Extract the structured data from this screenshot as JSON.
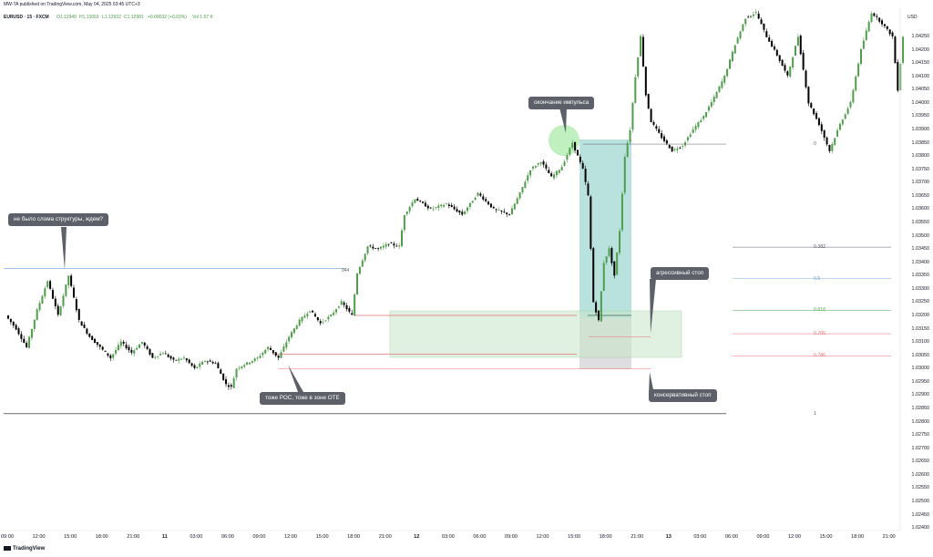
{
  "header": {
    "author_line": "MW-TA published on TradingView.com, May 04, 2025 03:45 UTC+3",
    "symbol": "EURUSD · 15 · FXCM",
    "ohlc": {
      "o": "O1.12949",
      "h": "H1.13001",
      "l": "L1.12932",
      "c": "C1.12981",
      "chg": "+0.00032 (+0.03%)",
      "vol": "Vol 1.67 K"
    },
    "currency": "USD"
  },
  "footer": {
    "logo": "TradingView"
  },
  "annotations": {
    "structure": "не было слома структуры, ждем?",
    "poc": "тоже POC, тоже в зоне OTE",
    "impulse_end": "окончание импульса",
    "aggressive_stop": "агрессивный стоп",
    "conservative_stop": "консервативный стоп",
    "level_label": "944"
  },
  "colors": {
    "up": "#4f9d4a",
    "down": "#000000",
    "fib_382": "#5d6069",
    "fib_05": "#6fa8dc",
    "fib_0618": "#4caf50",
    "fib_0705": "#e57373",
    "fib_0786": "#e57373",
    "target_zone": "#80cbc4",
    "ote_zone": "#c8e6c9"
  },
  "chart_data": {
    "type": "candlestick",
    "symbol": "EURUSD",
    "timeframe": "15",
    "ylim": [
      1.0239,
      1.0436
    ],
    "y_ticks": [
      "1.04250",
      "1.04200",
      "1.04150",
      "1.04100",
      "1.04050",
      "1.04000",
      "1.03950",
      "1.03900",
      "1.03850",
      "1.03800",
      "1.03750",
      "1.03700",
      "1.03650",
      "1.03600",
      "1.03550",
      "1.03500",
      "1.03450",
      "1.03400",
      "1.03350",
      "1.03300",
      "1.03250",
      "1.03200",
      "1.03150",
      "1.03100",
      "1.03050",
      "1.03000",
      "1.02950",
      "1.02900",
      "1.02850",
      "1.02800",
      "1.02750",
      "1.02700",
      "1.02650",
      "1.02600",
      "1.02550",
      "1.02500",
      "1.02450",
      "1.02400"
    ],
    "x_ticks": [
      {
        "t": 0,
        "label": "09:00"
      },
      {
        "t": 12,
        "label": "12:00"
      },
      {
        "t": 24,
        "label": "15:00"
      },
      {
        "t": 36,
        "label": "18:00"
      },
      {
        "t": 48,
        "label": "21:00"
      },
      {
        "t": 60,
        "label": "11",
        "bold": true
      },
      {
        "t": 72,
        "label": "03:00"
      },
      {
        "t": 84,
        "label": "06:00"
      },
      {
        "t": 96,
        "label": "09:00"
      },
      {
        "t": 108,
        "label": "12:00"
      },
      {
        "t": 120,
        "label": "15:00"
      },
      {
        "t": 132,
        "label": "18:00"
      },
      {
        "t": 144,
        "label": "21:00"
      },
      {
        "t": 156,
        "label": "12",
        "bold": true
      },
      {
        "t": 168,
        "label": "03:00"
      },
      {
        "t": 180,
        "label": "06:00"
      },
      {
        "t": 192,
        "label": "09:00"
      },
      {
        "t": 204,
        "label": "12:00"
      },
      {
        "t": 216,
        "label": "15:00"
      },
      {
        "t": 228,
        "label": "18:00"
      },
      {
        "t": 240,
        "label": "21:00"
      },
      {
        "t": 252,
        "label": "13",
        "bold": true
      },
      {
        "t": 264,
        "label": "03:00"
      },
      {
        "t": 276,
        "label": "06:00"
      },
      {
        "t": 288,
        "label": "09:00"
      },
      {
        "t": 300,
        "label": "12:00"
      },
      {
        "t": 312,
        "label": "15:00"
      },
      {
        "t": 324,
        "label": "18:00"
      },
      {
        "t": 336,
        "label": "21:00"
      }
    ],
    "price_path": [
      [
        0,
        1.032
      ],
      [
        4,
        1.0315
      ],
      [
        8,
        1.0308
      ],
      [
        12,
        1.0322
      ],
      [
        16,
        1.0333
      ],
      [
        20,
        1.032
      ],
      [
        24,
        1.0335
      ],
      [
        28,
        1.0318
      ],
      [
        32,
        1.0312
      ],
      [
        36,
        1.0308
      ],
      [
        40,
        1.0304
      ],
      [
        44,
        1.031
      ],
      [
        48,
        1.0306
      ],
      [
        52,
        1.031
      ],
      [
        56,
        1.0304
      ],
      [
        60,
        1.0306
      ],
      [
        64,
        1.0303
      ],
      [
        68,
        1.0304
      ],
      [
        72,
        1.03
      ],
      [
        76,
        1.0303
      ],
      [
        80,
        1.0302
      ],
      [
        84,
        1.0294
      ],
      [
        86,
        1.0293
      ],
      [
        88,
        1.03
      ],
      [
        92,
        1.0302
      ],
      [
        96,
        1.0304
      ],
      [
        100,
        1.0308
      ],
      [
        104,
        1.0304
      ],
      [
        108,
        1.0312
      ],
      [
        112,
        1.0318
      ],
      [
        116,
        1.0322
      ],
      [
        120,
        1.0317
      ],
      [
        124,
        1.032
      ],
      [
        128,
        1.0325
      ],
      [
        132,
        1.032
      ],
      [
        134,
        1.0336
      ],
      [
        138,
        1.0346
      ],
      [
        142,
        1.0345
      ],
      [
        146,
        1.0347
      ],
      [
        150,
        1.0346
      ],
      [
        152,
        1.0358
      ],
      [
        156,
        1.0364
      ],
      [
        162,
        1.036
      ],
      [
        168,
        1.0362
      ],
      [
        174,
        1.0358
      ],
      [
        180,
        1.0366
      ],
      [
        186,
        1.036
      ],
      [
        192,
        1.0358
      ],
      [
        196,
        1.0366
      ],
      [
        200,
        1.0375
      ],
      [
        204,
        1.0378
      ],
      [
        208,
        1.0372
      ],
      [
        212,
        1.0376
      ],
      [
        216,
        1.0385
      ],
      [
        220,
        1.0375
      ],
      [
        222,
        1.0365
      ],
      [
        224,
        1.0325
      ],
      [
        226,
        1.0318
      ],
      [
        228,
        1.034
      ],
      [
        230,
        1.0345
      ],
      [
        232,
        1.0335
      ],
      [
        234,
        1.0352
      ],
      [
        236,
        1.038
      ],
      [
        238,
        1.039
      ],
      [
        240,
        1.041
      ],
      [
        242,
        1.0425
      ],
      [
        244,
        1.0403
      ],
      [
        246,
        1.0393
      ],
      [
        250,
        1.0387
      ],
      [
        254,
        1.0382
      ],
      [
        258,
        1.0384
      ],
      [
        262,
        1.039
      ],
      [
        266,
        1.0395
      ],
      [
        270,
        1.0402
      ],
      [
        274,
        1.041
      ],
      [
        278,
        1.0422
      ],
      [
        282,
        1.0432
      ],
      [
        286,
        1.0434
      ],
      [
        290,
        1.0425
      ],
      [
        294,
        1.0418
      ],
      [
        298,
        1.041
      ],
      [
        302,
        1.0425
      ],
      [
        306,
        1.04
      ],
      [
        310,
        1.0392
      ],
      [
        314,
        1.0382
      ],
      [
        318,
        1.0392
      ],
      [
        322,
        1.04
      ],
      [
        326,
        1.042
      ],
      [
        330,
        1.0434
      ],
      [
        334,
        1.043
      ],
      [
        338,
        1.0425
      ],
      [
        340,
        1.0405
      ],
      [
        342,
        1.0425
      ]
    ],
    "levels": [
      {
        "price": 1.03376,
        "label": "944",
        "color": "#6fa8dc"
      },
      {
        "price": 1.0283,
        "label": "",
        "color": "#131722"
      }
    ],
    "fib_levels": [
      {
        "label": "0",
        "price": 1.03845
      },
      {
        "label": "1",
        "price": 1.0283
      },
      {
        "label": "0.382",
        "price": 1.03457
      },
      {
        "label": "0.5",
        "price": 1.03338
      },
      {
        "label": "0.618",
        "price": 1.03219
      },
      {
        "label": "0.705",
        "price": 1.03131
      },
      {
        "label": "0.786",
        "price": 1.03048
      }
    ]
  }
}
